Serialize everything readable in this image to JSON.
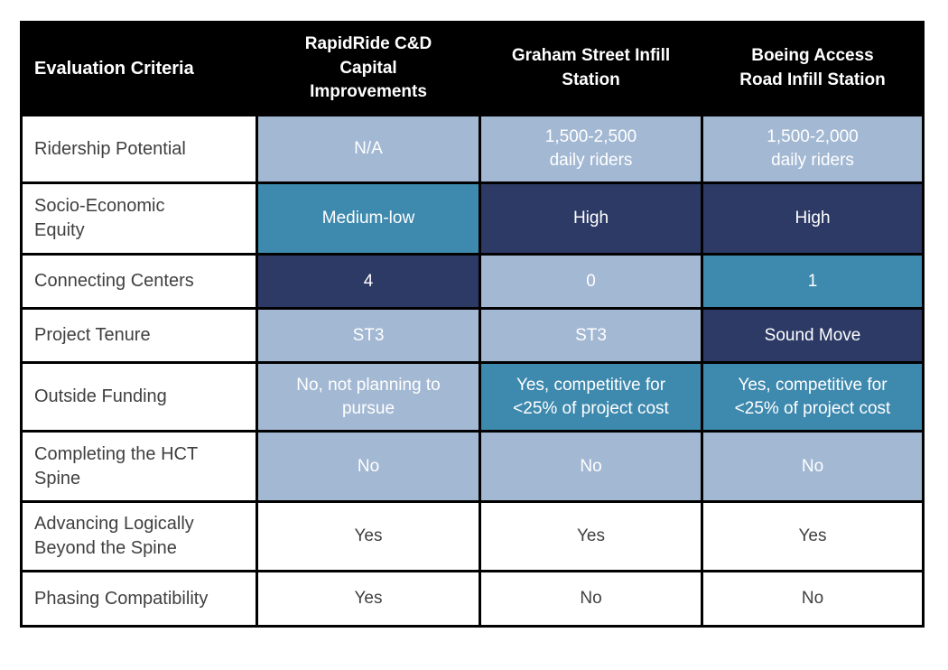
{
  "table": {
    "header": {
      "criteria_label": "Evaluation Criteria",
      "columns": [
        "RapidRide C&D\nCapital\nImprovements",
        "Graham Street Infill\nStation",
        "Boeing Access\nRoad Infill Station"
      ]
    },
    "tones": {
      "light": {
        "bg": "#a3b8d3",
        "text": "#ffffff"
      },
      "teal": {
        "bg": "#3e89ae",
        "text": "#ffffff"
      },
      "navy": {
        "bg": "#2d3a66",
        "text": "#ffffff"
      },
      "plain": {
        "bg": "#ffffff",
        "text": "#404040"
      }
    },
    "colors": {
      "header_bg": "#000000",
      "header_text": "#ffffff",
      "border": "#000000",
      "row_label_text": "#404040"
    },
    "rows": [
      {
        "label": "Ridership Potential",
        "cells": [
          {
            "text": "N/A",
            "tone": "light"
          },
          {
            "text": "1,500-2,500\ndaily riders",
            "tone": "light"
          },
          {
            "text": "1,500-2,000\ndaily riders",
            "tone": "light"
          }
        ]
      },
      {
        "label": "Socio-Economic\nEquity",
        "cells": [
          {
            "text": "Medium-low",
            "tone": "teal"
          },
          {
            "text": "High",
            "tone": "navy"
          },
          {
            "text": "High",
            "tone": "navy"
          }
        ]
      },
      {
        "label": "Connecting Centers",
        "cells": [
          {
            "text": "4",
            "tone": "navy"
          },
          {
            "text": "0",
            "tone": "light"
          },
          {
            "text": "1",
            "tone": "teal"
          }
        ]
      },
      {
        "label": "Project Tenure",
        "cells": [
          {
            "text": "ST3",
            "tone": "light"
          },
          {
            "text": "ST3",
            "tone": "light"
          },
          {
            "text": "Sound Move",
            "tone": "navy"
          }
        ]
      },
      {
        "label": "Outside Funding",
        "cells": [
          {
            "text": "No, not planning to\npursue",
            "tone": "light"
          },
          {
            "text": "Yes, competitive for\n<25% of project cost",
            "tone": "teal"
          },
          {
            "text": "Yes, competitive for\n<25% of project cost",
            "tone": "teal"
          }
        ]
      },
      {
        "label": "Completing the HCT\nSpine",
        "cells": [
          {
            "text": "No",
            "tone": "light"
          },
          {
            "text": "No",
            "tone": "light"
          },
          {
            "text": "No",
            "tone": "light"
          }
        ]
      },
      {
        "label": "Advancing Logically\nBeyond the Spine",
        "cells": [
          {
            "text": "Yes",
            "tone": "plain"
          },
          {
            "text": "Yes",
            "tone": "plain"
          },
          {
            "text": "Yes",
            "tone": "plain"
          }
        ]
      },
      {
        "label": "Phasing Compatibility",
        "cells": [
          {
            "text": "Yes",
            "tone": "plain"
          },
          {
            "text": "No",
            "tone": "plain"
          },
          {
            "text": "No",
            "tone": "plain"
          }
        ]
      }
    ]
  },
  "chart_data": {
    "type": "table",
    "columns": [
      "Evaluation Criteria",
      "RapidRide C&D Capital Improvements",
      "Graham Street Infill Station",
      "Boeing Access Road Infill Station"
    ],
    "rows": [
      [
        "Ridership Potential",
        "N/A",
        "1,500-2,500 daily riders",
        "1,500-2,000 daily riders"
      ],
      [
        "Socio-Economic Equity",
        "Medium-low",
        "High",
        "High"
      ],
      [
        "Connecting Centers",
        "4",
        "0",
        "1"
      ],
      [
        "Project Tenure",
        "ST3",
        "ST3",
        "Sound Move"
      ],
      [
        "Outside Funding",
        "No, not planning to pursue",
        "Yes, competitive for <25% of project cost",
        "Yes, competitive for <25% of project cost"
      ],
      [
        "Completing the HCT Spine",
        "No",
        "No",
        "No"
      ],
      [
        "Advancing Logically Beyond the Spine",
        "Yes",
        "Yes",
        "Yes"
      ],
      [
        "Phasing Compatibility",
        "Yes",
        "No",
        "No"
      ]
    ],
    "cell_color_legend": {
      "light_blue": "#a3b8d3",
      "teal": "#3e89ae",
      "navy": "#2d3a66",
      "white": "#ffffff"
    },
    "layout": "header row black with white bold text; first column left-aligned white cells with dark gray text; value cells centered with white text on colored backgrounds"
  }
}
